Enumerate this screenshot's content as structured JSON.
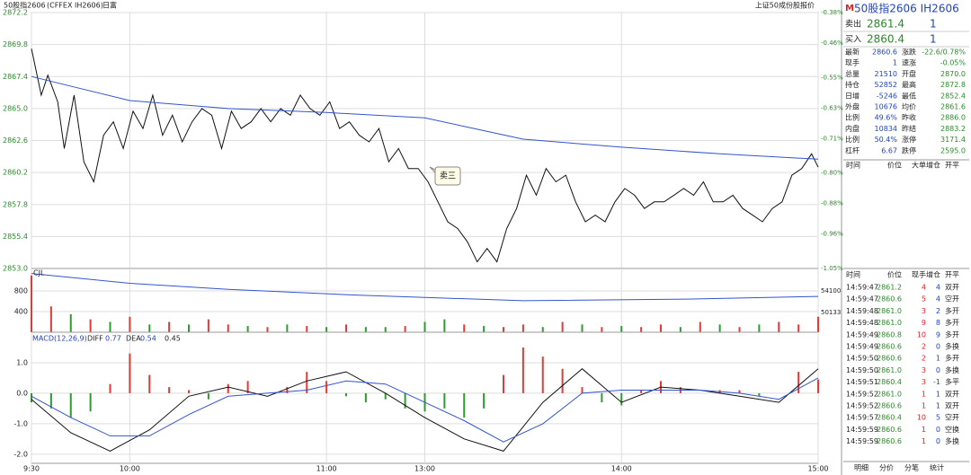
{
  "header": {
    "symbol": "50股指2606",
    "code": "(CFFEX IH2606)",
    "menu": "日富",
    "right": "上证50成份股报价"
  },
  "chart_data": [
    {
      "type": "line",
      "annotation": "卖三",
      "xlim": [
        0,
        240
      ],
      "xticks": [
        {
          "value": 0,
          "label": "9:30"
        },
        {
          "value": 30,
          "label": "10:00"
        },
        {
          "value": 90,
          "label": "11:00"
        },
        {
          "value": 120,
          "label": "13:00"
        },
        {
          "value": 180,
          "label": "14:00"
        },
        {
          "value": 240,
          "label": "15:00"
        }
      ],
      "ylim": [
        2853.0,
        2872.2
      ],
      "yticks": [
        {
          "value": 2853,
          "label": "2853.0"
        },
        2855.4,
        2857.8,
        2860.2,
        2862.6,
        {
          "value": 2865,
          "label": "2865.0"
        },
        2867.4,
        2869.8,
        2872.2
      ],
      "y2lim": [
        -1.05,
        -0.38
      ],
      "y2ticks": [
        {
          "value": -1.05,
          "label": "-1.05%"
        },
        {
          "value": -0.96,
          "label": "-0.96%"
        },
        {
          "value": -0.88,
          "label": "-0.88%"
        },
        {
          "value": -0.8,
          "label": "-0.80%"
        },
        {
          "value": -0.71,
          "label": "-0.71%"
        },
        {
          "value": -0.63,
          "label": "-0.63%"
        },
        {
          "value": -0.55,
          "label": "-0.55%"
        },
        {
          "value": -0.46,
          "label": "-0.46%"
        },
        {
          "value": -0.38,
          "label": "-0.38%"
        }
      ],
      "series": [
        {
          "color": "#111111",
          "x": [
            0,
            3,
            5,
            8,
            10,
            13,
            16,
            19,
            22,
            25,
            28,
            31,
            34,
            37,
            40,
            43,
            46,
            49,
            52,
            55,
            58,
            61,
            64,
            67,
            70,
            73,
            76,
            79,
            82,
            85,
            88,
            91,
            94,
            97,
            100,
            103,
            106,
            109,
            112,
            115,
            118,
            121,
            124,
            127,
            130,
            133,
            136,
            139,
            142,
            145,
            148,
            151,
            154,
            157,
            160,
            163,
            166,
            169,
            172,
            175,
            178,
            181,
            184,
            187,
            190,
            193,
            196,
            199,
            202,
            205,
            208,
            211,
            214,
            217,
            220,
            223,
            226,
            229,
            232,
            235,
            238,
            240
          ],
          "values": [
            2869.5,
            2866,
            2867.5,
            2865.5,
            2862,
            2866,
            2861,
            2859.5,
            2863,
            2864,
            2862,
            2864.8,
            2863.5,
            2866,
            2863,
            2864.5,
            2862.5,
            2864,
            2865,
            2864.5,
            2862,
            2864.8,
            2863.5,
            2864,
            2865,
            2864,
            2865,
            2864.5,
            2866,
            2865,
            2864.5,
            2865.5,
            2863.5,
            2864,
            2863,
            2862.5,
            2863.5,
            2861,
            2862,
            2860.5,
            2860.5,
            2859.5,
            2858,
            2856.5,
            2856,
            2855,
            2853.5,
            2854.5,
            2853.5,
            2856,
            2857.5,
            2860,
            2858.5,
            2860.5,
            2859.5,
            2860,
            2858,
            2856.5,
            2857,
            2856.5,
            2858,
            2859,
            2858.5,
            2857.5,
            2858,
            2858,
            2858.5,
            2859,
            2858.5,
            2859.5,
            2858,
            2858,
            2858.5,
            2857.5,
            2857,
            2856.5,
            2857.5,
            2858,
            2860,
            2860.5,
            2861.6,
            2860.6
          ]
        },
        {
          "color": "#3355cc",
          "x": [
            0,
            10,
            30,
            60,
            90,
            120,
            135,
            150,
            180,
            210,
            240
          ],
          "values": [
            2867.4,
            2866.8,
            2865.6,
            2865,
            2864.7,
            2864.3,
            2863.5,
            2862.7,
            2862.1,
            2861.6,
            2861.2
          ]
        }
      ]
    },
    {
      "type": "bar",
      "label": "CJL",
      "ylim": [
        0,
        1235
      ],
      "yticks": [
        400,
        800
      ],
      "x": [
        0,
        6,
        12,
        18,
        24,
        30,
        36,
        42,
        48,
        54,
        60,
        66,
        72,
        78,
        84,
        90,
        96,
        102,
        108,
        114,
        120,
        126,
        132,
        138,
        144,
        150,
        156,
        162,
        168,
        174,
        180,
        186,
        192,
        198,
        204,
        210,
        216,
        222,
        228,
        234,
        240
      ],
      "values": [
        1100,
        500,
        350,
        250,
        200,
        300,
        150,
        200,
        150,
        250,
        150,
        120,
        100,
        150,
        120,
        100,
        150,
        100,
        100,
        120,
        200,
        250,
        150,
        120,
        100,
        150,
        100,
        200,
        150,
        100,
        120,
        100,
        150,
        100,
        200,
        150,
        100,
        150,
        200,
        150,
        300
      ],
      "colors": [
        "#e53935",
        "#e53935",
        "#2e9b2e",
        "#e53935",
        "#2e9b2e",
        "#e53935",
        "#2e9b2e",
        "#e53935",
        "#2e9b2e",
        "#e53935",
        "#e53935",
        "#2e9b2e",
        "#e53935",
        "#2e9b2e",
        "#e53935",
        "#2e9b2e",
        "#e53935",
        "#2e9b2e",
        "#2e9b2e",
        "#e53935",
        "#2e9b2e",
        "#2e9b2e",
        "#e53935",
        "#2e9b2e",
        "#e53935",
        "#e53935",
        "#2e9b2e",
        "#e53935",
        "#2e9b2e",
        "#e53935",
        "#2e9b2e",
        "#e53935",
        "#e53935",
        "#2e9b2e",
        "#e53935",
        "#2e9b2e",
        "#e53935",
        "#2e9b2e",
        "#e53935",
        "#e53935",
        "#e53935"
      ],
      "y2lim": [
        46500,
        58230
      ],
      "y2ticks": [
        50133,
        54100
      ],
      "line": {
        "color": "#3355cc",
        "x": [
          0,
          30,
          60,
          100,
          150,
          200,
          240
        ],
        "values": [
          57300,
          55500,
          54400,
          53300,
          52300,
          52600,
          53100
        ]
      }
    },
    {
      "type": "macd",
      "title": "MACD(12,26,9)",
      "ylim": [
        -2.3,
        2.0
      ],
      "yticks": [
        {
          "value": -2,
          "label": "-2.0"
        },
        {
          "value": -1,
          "label": "-1.0"
        },
        {
          "value": 0,
          "label": "0.0"
        },
        {
          "value": 1,
          "label": "1.0"
        }
      ],
      "hist": {
        "last": 0.45,
        "x": [
          0,
          6,
          12,
          18,
          24,
          30,
          36,
          42,
          48,
          54,
          60,
          66,
          72,
          78,
          84,
          90,
          96,
          102,
          108,
          114,
          120,
          126,
          132,
          138,
          144,
          150,
          156,
          162,
          168,
          174,
          180,
          186,
          192,
          198,
          204,
          210,
          216,
          222,
          228,
          234,
          240
        ],
        "values": [
          -0.3,
          -0.5,
          -0.8,
          -0.6,
          0.3,
          1.3,
          0.6,
          0.2,
          0.1,
          -0.2,
          0.3,
          0.4,
          0.0,
          0.2,
          0.7,
          0.4,
          -0.1,
          -0.3,
          -0.2,
          -0.5,
          -0.6,
          -0.5,
          -0.8,
          -0.5,
          0.6,
          1.5,
          1.2,
          0.8,
          0.2,
          -0.3,
          -0.4,
          0.1,
          0.4,
          0.2,
          0.0,
          0.1,
          0.1,
          -0.1,
          0.0,
          0.7,
          0.45
        ]
      },
      "series": [
        {
          "name": "DIFF",
          "last": 0.77,
          "color": "#111111",
          "x": [
            0,
            12,
            24,
            36,
            48,
            60,
            72,
            84,
            96,
            108,
            120,
            132,
            144,
            156,
            168,
            180,
            192,
            204,
            216,
            228,
            240
          ],
          "values": [
            -0.2,
            -1.3,
            -1.9,
            -1.2,
            -0.1,
            0.2,
            -0.1,
            0.4,
            0.7,
            0.0,
            -0.8,
            -1.5,
            -1.9,
            -0.3,
            0.8,
            -0.3,
            0.2,
            0.1,
            -0.1,
            -0.3,
            0.8
          ]
        },
        {
          "name": "DEA",
          "last": 0.54,
          "color": "#3355cc",
          "x": [
            0,
            12,
            24,
            36,
            48,
            60,
            72,
            84,
            96,
            108,
            120,
            132,
            144,
            156,
            168,
            180,
            192,
            204,
            216,
            228,
            240
          ],
          "values": [
            -0.1,
            -0.8,
            -1.4,
            -1.4,
            -0.7,
            -0.1,
            0.0,
            0.1,
            0.4,
            0.3,
            -0.3,
            -0.9,
            -1.6,
            -1.0,
            0.0,
            0.1,
            0.1,
            0.1,
            0.0,
            -0.2,
            0.5
          ]
        }
      ]
    }
  ],
  "panel": {
    "mark": "M",
    "title": "50股指2606  IH2606",
    "book": [
      [
        "卖出",
        "2861.4",
        "1"
      ],
      [
        "买入",
        "2860.4",
        "1"
      ]
    ],
    "quote": [
      [
        "最新",
        "2860.6",
        "涨跌",
        "-22.6/0.78%"
      ],
      [
        "现手",
        "1",
        "速涨",
        "-0.05%"
      ],
      [
        "总量",
        "21510",
        "开盘",
        "2870.0"
      ],
      [
        "持仓",
        "52852",
        "最高",
        "2872.8"
      ],
      [
        "日增",
        "-5246",
        "最低",
        "2852.4"
      ],
      [
        "外盘",
        "10676",
        "均价",
        "2861.6"
      ],
      [
        "比例",
        "49.6%",
        "昨收",
        "2886.0"
      ],
      [
        "内盘",
        "10834",
        "昨结",
        "2883.2"
      ],
      [
        "比例",
        "50.4%",
        "涨停",
        "3171.4"
      ],
      [
        "杠杆",
        "6.67",
        "跌停",
        "2595.0"
      ]
    ],
    "big_header": [
      "时间",
      "价位",
      "大单",
      "增仓",
      "开平"
    ],
    "trade_header": [
      "时间",
      "价位",
      "现手",
      "增仓",
      "开平"
    ],
    "trades": [
      [
        "14:59:47",
        "2861.2",
        "4",
        "4",
        "双开"
      ],
      [
        "14:59:47",
        "2860.6",
        "5",
        "4",
        "空开"
      ],
      [
        "14:59:48",
        "2861.0",
        "3",
        "2",
        "多开"
      ],
      [
        "14:59:48",
        "2861.0",
        "9",
        "8",
        "多开"
      ],
      [
        "14:59:49",
        "2860.8",
        "10",
        "9",
        "多开"
      ],
      [
        "14:59:49",
        "2860.6",
        "2",
        "0",
        "多换"
      ],
      [
        "14:59:50",
        "2860.6",
        "2",
        "1",
        "多开"
      ],
      [
        "14:59:50",
        "2861.0",
        "3",
        "0",
        "多换"
      ],
      [
        "14:59:51",
        "2860.4",
        "3",
        "-1",
        "多平"
      ],
      [
        "14:59:52",
        "2861.0",
        "1",
        "1",
        "双开"
      ],
      [
        "14:59:52",
        "2860.6",
        "1",
        "1",
        "双开"
      ],
      [
        "14:59:57",
        "2860.4",
        "10",
        "5",
        "空开"
      ],
      [
        "14:59:59",
        "2860.6",
        "1",
        "0",
        "空换"
      ],
      [
        "14:59:59",
        "2860.6",
        "1",
        "0",
        "多换"
      ]
    ],
    "tabs": [
      "明细",
      "分价",
      "分笔",
      "统计"
    ]
  }
}
